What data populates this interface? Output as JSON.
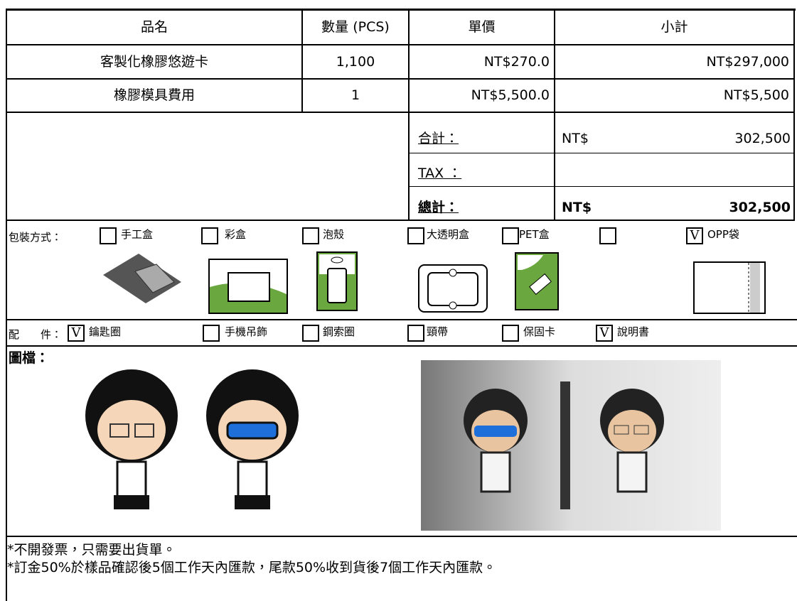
{
  "table": {
    "header": [
      "品名",
      "數量 (PCS)",
      "單價",
      "小計"
    ],
    "rows": [
      [
        "客製化橡膠悠遊卡",
        "1,100",
        "NT$270.0",
        "NT$297,000"
      ],
      [
        "橡膠模具費用",
        "1",
        "NT$5,500.0",
        "NT$5,500"
      ]
    ]
  },
  "summary": [
    {
      "label": "合計：",
      "currency": "NT$",
      "amount": "302,500"
    },
    {
      "label": "TAX ："
    },
    {
      "label": "總計：",
      "currency": "NT$",
      "amount": "302,500"
    }
  ],
  "packaging": {
    "label": "包裝方式：",
    "options": [
      {
        "name": "手工盒"
      },
      {
        "name": "彩盒"
      },
      {
        "name": "泡殼"
      },
      {
        "name": "大透明盒"
      },
      {
        "name": "PET盒"
      },
      {
        "name": "OPP袋",
        "mark": "V"
      }
    ]
  },
  "accessories": {
    "label": "配　　件：",
    "options": [
      {
        "name": "鑰匙圈",
        "mark": "V"
      },
      {
        "name": "手機吊飾"
      },
      {
        "name": "鋼索圈"
      },
      {
        "name": "頸帶"
      },
      {
        "name": "保固卡"
      },
      {
        "name": "說明書",
        "mark": "V"
      }
    ]
  },
  "images": {
    "label": "圖檔："
  },
  "notes": [
    "*不開發票，只需要出貨單。",
    "*訂金50%於樣品確認後5個工作天內匯款，尾款50%收到貨後7個工作天內匯款。"
  ]
}
